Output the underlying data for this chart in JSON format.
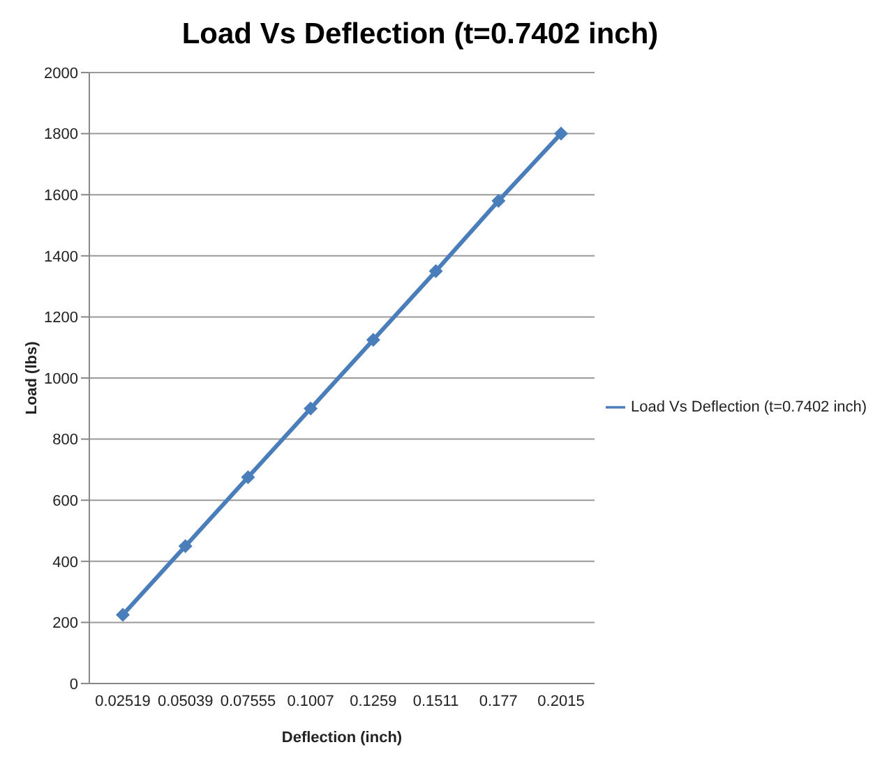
{
  "chart_data": {
    "type": "line",
    "title": "Load Vs Deflection (t=0.7402 inch)",
    "xlabel": "Deflection (inch)",
    "ylabel": "Load (lbs)",
    "categories": [
      "0.02519",
      "0.05039",
      "0.07555",
      "0.1007",
      "0.1259",
      "0.1511",
      "0.177",
      "0.2015"
    ],
    "series": [
      {
        "name": "Load Vs Deflection (t=0.7402 inch)",
        "color": "#4a7ebb",
        "values": [
          225,
          450,
          675,
          900,
          1125,
          1350,
          1580,
          1800
        ]
      }
    ],
    "ylim": [
      0,
      2000
    ],
    "yticks": [
      0,
      200,
      400,
      600,
      800,
      1000,
      1200,
      1400,
      1600,
      1800,
      2000
    ],
    "grid": "y",
    "legend": "right",
    "marker": "diamond",
    "line_style": "solid"
  }
}
